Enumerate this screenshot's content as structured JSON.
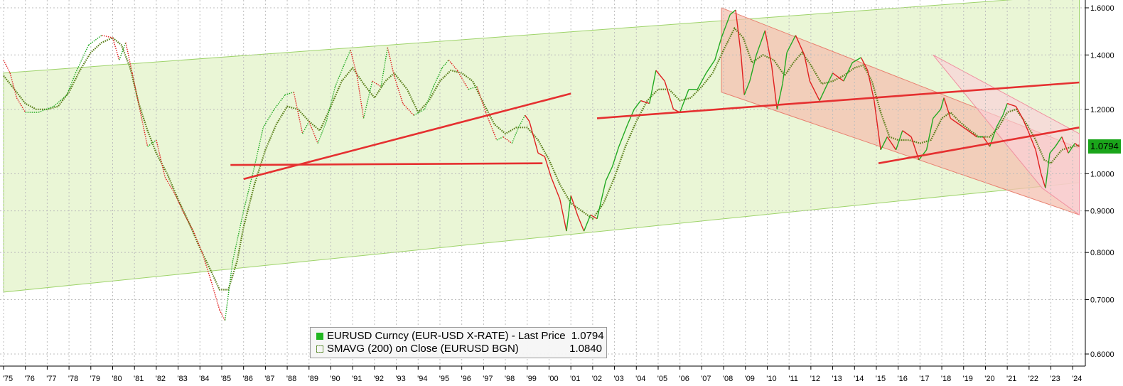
{
  "chart_data": {
    "type": "line",
    "y_axis": {
      "min": 0.6,
      "max": 1.6,
      "position": "right",
      "ticks": [
        {
          "value": 0.6,
          "label": "0.6000"
        },
        {
          "value": 0.7,
          "label": "0.7000"
        },
        {
          "value": 0.8,
          "label": "0.8000"
        },
        {
          "value": 0.9,
          "label": "0.9000"
        },
        {
          "value": 1.0,
          "label": "1.0000"
        },
        {
          "value": 1.2,
          "label": "1.2000"
        },
        {
          "value": 1.4,
          "label": "1.4000"
        },
        {
          "value": 1.6,
          "label": "1.6000"
        }
      ]
    },
    "x_axis": {
      "labels": [
        "'75",
        "'76",
        "'77",
        "'78",
        "'79",
        "'80",
        "'81",
        "'82",
        "'83",
        "'84",
        "'85",
        "'86",
        "'87",
        "'88",
        "'89",
        "'90",
        "'91",
        "'92",
        "'93",
        "'94",
        "'95",
        "'96",
        "'97",
        "'98",
        "'99",
        "'00",
        "'01",
        "'02",
        "'03",
        "'04",
        "'05",
        "'06",
        "'07",
        "'08",
        "'09",
        "'10",
        "'11",
        "'12",
        "'13",
        "'14",
        "'15",
        "'16",
        "'17",
        "'18",
        "'19",
        "'20",
        "'21",
        "'22",
        "'23",
        "'24"
      ]
    },
    "grid": true,
    "series": [
      {
        "name": "EURUSD Curncy (EUR-USD X-RATE) - Last Price",
        "color": "#22aa22",
        "points": [
          [
            1975.0,
            1.38
          ],
          [
            1975.3,
            1.33
          ],
          [
            1975.6,
            1.24
          ],
          [
            1976.0,
            1.19
          ],
          [
            1976.6,
            1.19
          ],
          [
            1977.3,
            1.21
          ],
          [
            1977.9,
            1.25
          ],
          [
            1978.3,
            1.33
          ],
          [
            1978.9,
            1.44
          ],
          [
            1979.5,
            1.48
          ],
          [
            1980.0,
            1.47
          ],
          [
            1980.3,
            1.38
          ],
          [
            1980.6,
            1.45
          ],
          [
            1980.9,
            1.33
          ],
          [
            1981.3,
            1.18
          ],
          [
            1981.6,
            1.08
          ],
          [
            1982.0,
            1.1
          ],
          [
            1982.4,
            0.99
          ],
          [
            1982.8,
            0.95
          ],
          [
            1983.3,
            0.89
          ],
          [
            1983.7,
            0.85
          ],
          [
            1984.1,
            0.8
          ],
          [
            1984.5,
            0.74
          ],
          [
            1984.9,
            0.68
          ],
          [
            1985.15,
            0.66
          ],
          [
            1985.5,
            0.78
          ],
          [
            1986.0,
            0.9
          ],
          [
            1986.5,
            1.02
          ],
          [
            1986.9,
            1.14
          ],
          [
            1987.4,
            1.2
          ],
          [
            1987.9,
            1.25
          ],
          [
            1988.3,
            1.26
          ],
          [
            1988.7,
            1.12
          ],
          [
            1989.0,
            1.16
          ],
          [
            1989.4,
            1.09
          ],
          [
            1989.8,
            1.16
          ],
          [
            1990.2,
            1.28
          ],
          [
            1990.6,
            1.36
          ],
          [
            1990.9,
            1.42
          ],
          [
            1991.2,
            1.32
          ],
          [
            1991.5,
            1.17
          ],
          [
            1991.9,
            1.3
          ],
          [
            1992.3,
            1.28
          ],
          [
            1992.6,
            1.43
          ],
          [
            1992.9,
            1.32
          ],
          [
            1993.3,
            1.22
          ],
          [
            1993.8,
            1.18
          ],
          [
            1994.3,
            1.2
          ],
          [
            1994.7,
            1.28
          ],
          [
            1995.1,
            1.35
          ],
          [
            1995.4,
            1.38
          ],
          [
            1995.8,
            1.34
          ],
          [
            1996.3,
            1.27
          ],
          [
            1996.7,
            1.28
          ],
          [
            1997.1,
            1.19
          ],
          [
            1997.6,
            1.1
          ],
          [
            1997.9,
            1.11
          ],
          [
            1998.3,
            1.09
          ],
          [
            1998.6,
            1.14
          ],
          [
            1998.9,
            1.18
          ],
          [
            1999.1,
            1.16
          ],
          [
            1999.5,
            1.06
          ],
          [
            1999.8,
            1.05
          ],
          [
            2000.1,
            0.99
          ],
          [
            2000.5,
            0.93
          ],
          [
            2000.8,
            0.85
          ],
          [
            2001.0,
            0.94
          ],
          [
            2001.3,
            0.89
          ],
          [
            2001.6,
            0.85
          ],
          [
            2001.9,
            0.89
          ],
          [
            2002.2,
            0.88
          ],
          [
            2002.6,
            0.98
          ],
          [
            2002.9,
            1.02
          ],
          [
            2003.2,
            1.08
          ],
          [
            2003.6,
            1.15
          ],
          [
            2003.9,
            1.2
          ],
          [
            2004.2,
            1.23
          ],
          [
            2004.6,
            1.22
          ],
          [
            2004.9,
            1.34
          ],
          [
            2005.3,
            1.3
          ],
          [
            2005.7,
            1.2
          ],
          [
            2006.0,
            1.19
          ],
          [
            2006.4,
            1.27
          ],
          [
            2006.8,
            1.27
          ],
          [
            2007.2,
            1.33
          ],
          [
            2007.6,
            1.38
          ],
          [
            2007.9,
            1.47
          ],
          [
            2008.3,
            1.57
          ],
          [
            2008.55,
            1.59
          ],
          [
            2008.8,
            1.4
          ],
          [
            2008.95,
            1.25
          ],
          [
            2009.2,
            1.3
          ],
          [
            2009.5,
            1.4
          ],
          [
            2009.9,
            1.5
          ],
          [
            2010.2,
            1.36
          ],
          [
            2010.45,
            1.2
          ],
          [
            2010.7,
            1.29
          ],
          [
            2010.9,
            1.41
          ],
          [
            2011.3,
            1.48
          ],
          [
            2011.7,
            1.4
          ],
          [
            2011.95,
            1.3
          ],
          [
            2012.4,
            1.23
          ],
          [
            2012.7,
            1.28
          ],
          [
            2013.0,
            1.33
          ],
          [
            2013.5,
            1.3
          ],
          [
            2013.9,
            1.37
          ],
          [
            2014.3,
            1.39
          ],
          [
            2014.6,
            1.34
          ],
          [
            2014.9,
            1.23
          ],
          [
            2015.2,
            1.07
          ],
          [
            2015.5,
            1.11
          ],
          [
            2015.9,
            1.07
          ],
          [
            2016.2,
            1.13
          ],
          [
            2016.6,
            1.11
          ],
          [
            2016.95,
            1.04
          ],
          [
            2017.3,
            1.07
          ],
          [
            2017.6,
            1.17
          ],
          [
            2017.95,
            1.2
          ],
          [
            2018.1,
            1.24
          ],
          [
            2018.4,
            1.17
          ],
          [
            2018.8,
            1.15
          ],
          [
            2019.2,
            1.13
          ],
          [
            2019.6,
            1.11
          ],
          [
            2019.9,
            1.11
          ],
          [
            2020.2,
            1.08
          ],
          [
            2020.5,
            1.14
          ],
          [
            2020.8,
            1.18
          ],
          [
            2021.0,
            1.22
          ],
          [
            2021.4,
            1.21
          ],
          [
            2021.7,
            1.17
          ],
          [
            2021.95,
            1.13
          ],
          [
            2022.3,
            1.07
          ],
          [
            2022.55,
            1.0
          ],
          [
            2022.75,
            0.96
          ],
          [
            2022.95,
            1.06
          ],
          [
            2023.2,
            1.08
          ],
          [
            2023.5,
            1.11
          ],
          [
            2023.8,
            1.06
          ],
          [
            2024.1,
            1.09
          ],
          [
            2024.3,
            1.0794
          ]
        ]
      },
      {
        "name": "SMAVG (200) on Close (EURUSD BGN)",
        "color": "#5a7f1a",
        "points": [
          [
            1975.0,
            1.32
          ],
          [
            1975.5,
            1.27
          ],
          [
            1976.0,
            1.22
          ],
          [
            1976.5,
            1.2
          ],
          [
            1977.0,
            1.2
          ],
          [
            1977.5,
            1.21
          ],
          [
            1978.0,
            1.26
          ],
          [
            1978.5,
            1.34
          ],
          [
            1979.0,
            1.41
          ],
          [
            1979.5,
            1.45
          ],
          [
            1980.0,
            1.47
          ],
          [
            1980.4,
            1.44
          ],
          [
            1980.8,
            1.35
          ],
          [
            1981.2,
            1.22
          ],
          [
            1981.6,
            1.13
          ],
          [
            1982.0,
            1.06
          ],
          [
            1982.5,
            1.0
          ],
          [
            1983.0,
            0.93
          ],
          [
            1983.5,
            0.87
          ],
          [
            1984.0,
            0.81
          ],
          [
            1984.5,
            0.76
          ],
          [
            1984.9,
            0.72
          ],
          [
            1985.3,
            0.72
          ],
          [
            1985.7,
            0.78
          ],
          [
            1986.0,
            0.86
          ],
          [
            1986.5,
            0.97
          ],
          [
            1987.0,
            1.07
          ],
          [
            1987.5,
            1.15
          ],
          [
            1988.0,
            1.21
          ],
          [
            1988.5,
            1.2
          ],
          [
            1989.0,
            1.16
          ],
          [
            1989.5,
            1.13
          ],
          [
            1990.0,
            1.21
          ],
          [
            1990.5,
            1.3
          ],
          [
            1991.0,
            1.35
          ],
          [
            1991.5,
            1.29
          ],
          [
            1992.0,
            1.24
          ],
          [
            1992.5,
            1.3
          ],
          [
            1992.9,
            1.33
          ],
          [
            1993.5,
            1.27
          ],
          [
            1994.0,
            1.19
          ],
          [
            1994.5,
            1.23
          ],
          [
            1995.0,
            1.3
          ],
          [
            1995.5,
            1.34
          ],
          [
            1996.0,
            1.33
          ],
          [
            1996.5,
            1.3
          ],
          [
            1997.0,
            1.22
          ],
          [
            1997.5,
            1.15
          ],
          [
            1998.0,
            1.12
          ],
          [
            1998.5,
            1.14
          ],
          [
            1999.0,
            1.14
          ],
          [
            1999.5,
            1.1
          ],
          [
            2000.0,
            1.04
          ],
          [
            2000.5,
            0.97
          ],
          [
            2001.0,
            0.92
          ],
          [
            2001.5,
            0.9
          ],
          [
            2002.0,
            0.88
          ],
          [
            2002.5,
            0.92
          ],
          [
            2003.0,
            0.99
          ],
          [
            2003.5,
            1.08
          ],
          [
            2004.0,
            1.16
          ],
          [
            2004.5,
            1.23
          ],
          [
            2005.0,
            1.27
          ],
          [
            2005.5,
            1.27
          ],
          [
            2006.0,
            1.23
          ],
          [
            2006.5,
            1.24
          ],
          [
            2007.0,
            1.28
          ],
          [
            2007.5,
            1.33
          ],
          [
            2008.0,
            1.42
          ],
          [
            2008.5,
            1.51
          ],
          [
            2008.9,
            1.47
          ],
          [
            2009.3,
            1.37
          ],
          [
            2009.8,
            1.4
          ],
          [
            2010.3,
            1.38
          ],
          [
            2010.8,
            1.32
          ],
          [
            2011.2,
            1.37
          ],
          [
            2011.6,
            1.41
          ],
          [
            2012.0,
            1.36
          ],
          [
            2012.5,
            1.29
          ],
          [
            2013.0,
            1.3
          ],
          [
            2013.5,
            1.32
          ],
          [
            2014.0,
            1.35
          ],
          [
            2014.4,
            1.36
          ],
          [
            2014.8,
            1.3
          ],
          [
            2015.2,
            1.19
          ],
          [
            2015.6,
            1.11
          ],
          [
            2016.0,
            1.1
          ],
          [
            2016.5,
            1.1
          ],
          [
            2017.0,
            1.09
          ],
          [
            2017.5,
            1.1
          ],
          [
            2018.0,
            1.17
          ],
          [
            2018.4,
            1.19
          ],
          [
            2018.8,
            1.16
          ],
          [
            2019.3,
            1.13
          ],
          [
            2019.7,
            1.11
          ],
          [
            2020.2,
            1.11
          ],
          [
            2020.6,
            1.14
          ],
          [
            2021.0,
            1.19
          ],
          [
            2021.4,
            1.2
          ],
          [
            2021.9,
            1.15
          ],
          [
            2022.3,
            1.1
          ],
          [
            2022.7,
            1.04
          ],
          [
            2023.0,
            1.03
          ],
          [
            2023.5,
            1.07
          ],
          [
            2024.0,
            1.08
          ],
          [
            2024.3,
            1.084
          ]
        ]
      }
    ],
    "annotations": {
      "green_channel": {
        "upper": [
          [
            1975.0,
            1.33
          ],
          [
            2024.3,
            1.66
          ]
        ],
        "lower": [
          [
            1975.0,
            0.715
          ],
          [
            2024.3,
            0.975
          ]
        ]
      },
      "red_channel": {
        "upper": [
          [
            2007.9,
            1.6
          ],
          [
            2024.3,
            1.075
          ]
        ],
        "lower": [
          [
            2007.9,
            1.26
          ],
          [
            2024.3,
            0.89
          ]
        ]
      },
      "pink_channel": {
        "upper": [
          [
            2017.6,
            1.4
          ],
          [
            2024.3,
            1.12
          ]
        ],
        "lower": [
          [
            2022.6,
            0.96
          ],
          [
            2024.3,
            0.89
          ]
        ]
      },
      "red_trendlines": [
        [
          [
            1985.4,
            1.025
          ],
          [
            1999.7,
            1.03
          ]
        ],
        [
          [
            1986.0,
            0.985
          ],
          [
            2001.0,
            1.255
          ]
        ],
        [
          [
            2002.2,
            1.17
          ],
          [
            2024.3,
            1.295
          ]
        ],
        [
          [
            2015.1,
            1.03
          ],
          [
            2024.3,
            1.14
          ]
        ]
      ]
    },
    "legend": {
      "position": "bottom-center",
      "entries": [
        {
          "label": "EURUSD Curncy (EUR-USD X-RATE) - Last Price",
          "value": "1.0794"
        },
        {
          "label": "SMAVG (200)  on Close (EURUSD BGN)",
          "value": "1.0840"
        }
      ]
    },
    "last_price_tag": "1.0794",
    "colors": {
      "price_up": "#22aa22",
      "price_down": "#e02020",
      "sma": "#5a7f1a",
      "green_fill": "#eaf6d6",
      "red_fill": "#f4c0b0",
      "pink_fill": "#fbd0d8",
      "trendline": "#e53030",
      "tag": "#1aa51a"
    }
  }
}
